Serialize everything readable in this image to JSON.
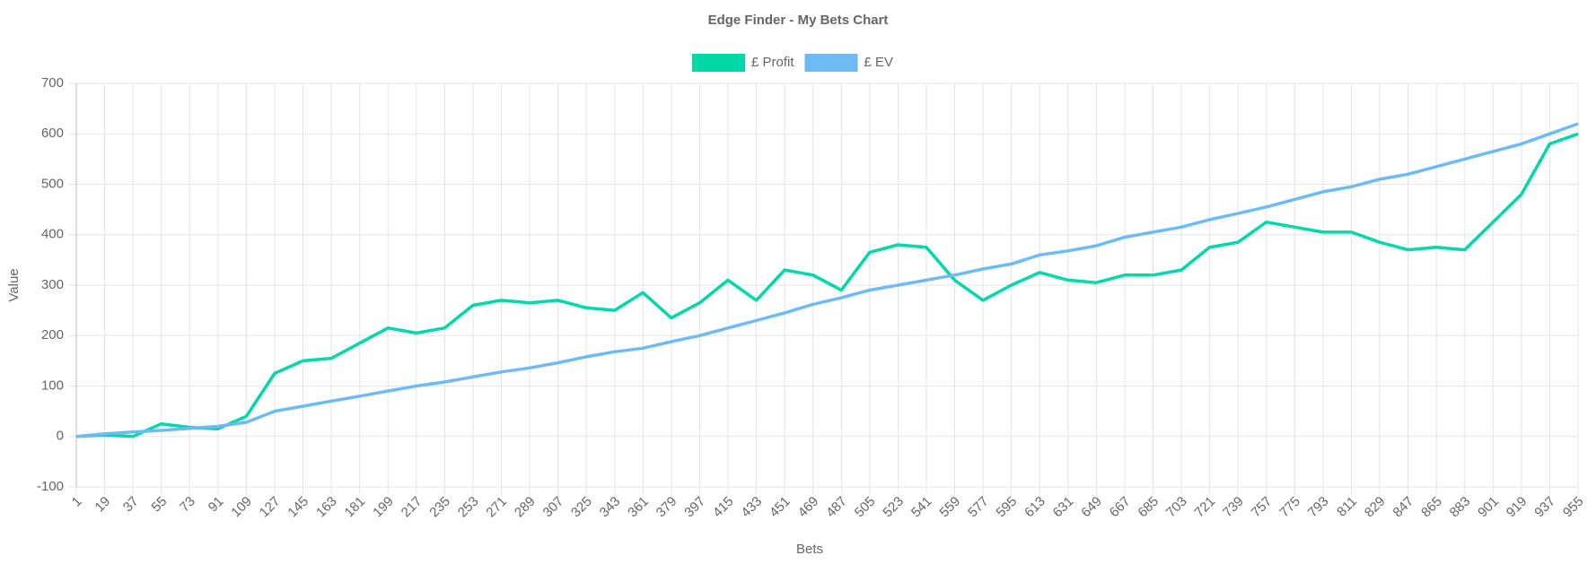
{
  "chart_data": {
    "type": "line",
    "title": "Edge Finder - My Bets Chart",
    "x_label": "Bets",
    "y_label": "Value",
    "x": [
      1,
      19,
      37,
      55,
      73,
      91,
      109,
      127,
      145,
      163,
      181,
      199,
      217,
      235,
      253,
      271,
      289,
      307,
      325,
      343,
      361,
      379,
      397,
      415,
      433,
      451,
      469,
      487,
      505,
      523,
      541,
      559,
      577,
      595,
      613,
      631,
      649,
      667,
      685,
      703,
      721,
      739,
      757,
      775,
      793,
      811,
      829,
      847,
      865,
      883,
      901,
      919,
      937,
      955
    ],
    "series": [
      {
        "name": "£ Profit",
        "color": "#00d8a8",
        "values": [
          0,
          3,
          0,
          25,
          18,
          15,
          40,
          125,
          150,
          155,
          185,
          215,
          205,
          215,
          260,
          270,
          265,
          270,
          255,
          250,
          285,
          235,
          265,
          310,
          270,
          330,
          320,
          290,
          365,
          380,
          375,
          310,
          270,
          300,
          325,
          310,
          305,
          320,
          320,
          330,
          375,
          385,
          425,
          415,
          405,
          405,
          385,
          370,
          375,
          370,
          425,
          480,
          580,
          600
        ]
      },
      {
        "name": "£ EV",
        "color": "#6ebbf3",
        "values": [
          0,
          5,
          9,
          12,
          16,
          20,
          28,
          50,
          60,
          70,
          80,
          90,
          100,
          108,
          118,
          128,
          136,
          146,
          158,
          168,
          175,
          188,
          200,
          215,
          230,
          245,
          262,
          275,
          290,
          300,
          310,
          320,
          332,
          342,
          360,
          368,
          378,
          395,
          405,
          415,
          430,
          442,
          455,
          470,
          485,
          495,
          510,
          520,
          535,
          550,
          565,
          580,
          600,
          620
        ]
      }
    ],
    "xlim": [
      1,
      955
    ],
    "xticks": [
      1,
      19,
      37,
      55,
      73,
      91,
      109,
      127,
      145,
      163,
      181,
      199,
      217,
      235,
      253,
      271,
      289,
      307,
      325,
      343,
      361,
      379,
      397,
      415,
      433,
      451,
      469,
      487,
      505,
      523,
      541,
      559,
      577,
      595,
      613,
      631,
      649,
      667,
      685,
      703,
      721,
      739,
      757,
      775,
      793,
      811,
      829,
      847,
      865,
      883,
      901,
      919,
      937,
      955
    ],
    "ylim": [
      -100,
      700
    ],
    "yticks": [
      -100,
      0,
      100,
      200,
      300,
      400,
      500,
      600,
      700
    ],
    "grid": true,
    "legend": "top"
  }
}
